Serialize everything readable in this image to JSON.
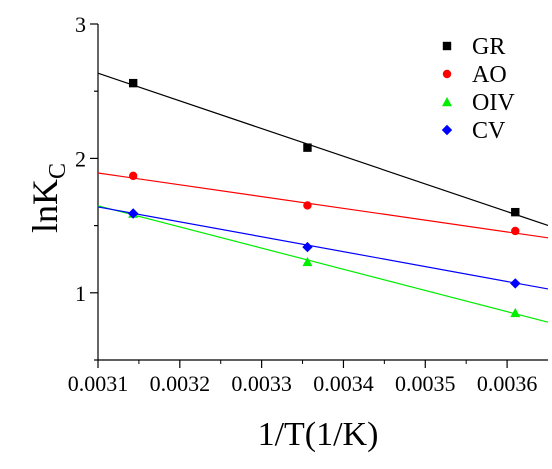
{
  "chart_data": {
    "type": "scatter",
    "title": "",
    "xlabel": "1/T(1/K)",
    "ylabel": {
      "base": "lnK",
      "subscript": "C"
    },
    "xlim": [
      0.0031,
      0.00365
    ],
    "ylim": [
      0.5,
      3.0
    ],
    "x_ticks": [
      {
        "value": 0.0031,
        "label": "0.0031"
      },
      {
        "value": 0.0032,
        "label": "0.0032"
      },
      {
        "value": 0.0033,
        "label": "0.0033"
      },
      {
        "value": 0.0034,
        "label": "0.0034"
      },
      {
        "value": 0.0035,
        "label": "0.0035"
      },
      {
        "value": 0.0036,
        "label": "0.0036"
      }
    ],
    "y_ticks": [
      {
        "value": 1,
        "label": "1"
      },
      {
        "value": 2,
        "label": "2"
      },
      {
        "value": 3,
        "label": "3"
      }
    ],
    "grid": false,
    "legend_position": "top-right",
    "series": [
      {
        "name": "GR",
        "marker": "square",
        "color": "#000000",
        "x": [
          0.003143,
          0.003356,
          0.00361
        ],
        "y": [
          2.56,
          2.08,
          1.6
        ],
        "fit": {
          "slope": -2060,
          "intercept": 9.02
        }
      },
      {
        "name": "AO",
        "marker": "circle",
        "color": "#ff0000",
        "x": [
          0.003143,
          0.003356,
          0.00361
        ],
        "y": [
          1.87,
          1.65,
          1.46
        ],
        "fit": {
          "slope": -877,
          "intercept": 4.61
        }
      },
      {
        "name": "OIV",
        "marker": "triangle",
        "color": "#00ee00",
        "x": [
          0.003143,
          0.003356,
          0.00361
        ],
        "y": [
          1.59,
          1.23,
          0.85
        ],
        "fit": {
          "slope": -1575,
          "intercept": 6.53
        }
      },
      {
        "name": "CV",
        "marker": "diamond",
        "color": "#0000ff",
        "x": [
          0.003143,
          0.003356,
          0.00361
        ],
        "y": [
          1.59,
          1.34,
          1.07
        ],
        "fit": {
          "slope": -1110,
          "intercept": 5.08
        }
      }
    ]
  }
}
